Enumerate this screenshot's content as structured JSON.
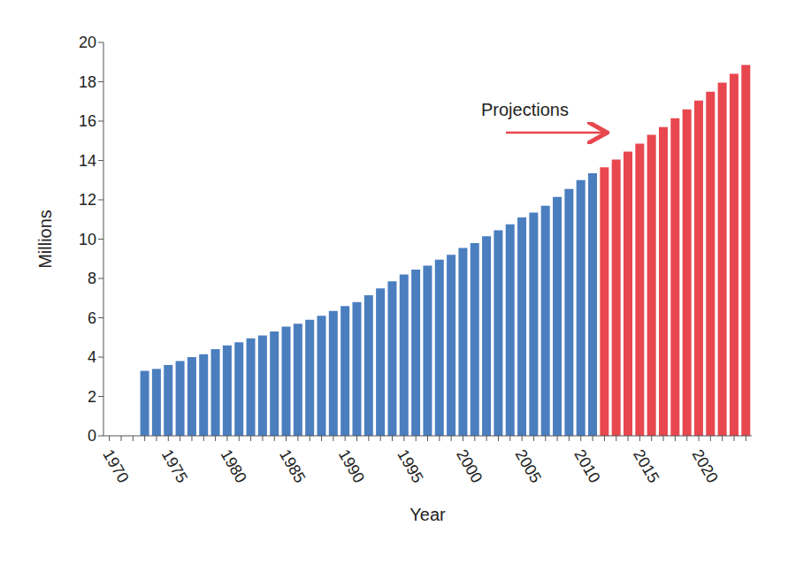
{
  "chart_data": {
    "type": "bar",
    "x_label": "Year",
    "y_label": "Millions",
    "annotations": [
      {
        "text": "Projections"
      }
    ],
    "categories": [
      "1970",
      null,
      null,
      null,
      null,
      "1975",
      null,
      null,
      null,
      null,
      "1980",
      null,
      null,
      null,
      null,
      "1985",
      null,
      null,
      null,
      null,
      "1990",
      null,
      null,
      null,
      null,
      "1995",
      null,
      null,
      null,
      null,
      "2000",
      null,
      null,
      null,
      null,
      "2005",
      null,
      null,
      null,
      null,
      "2010",
      null,
      null,
      null,
      null,
      "2015",
      null,
      null,
      null,
      null,
      "2020",
      null,
      null,
      null,
      null
    ],
    "values": [
      null,
      null,
      null,
      3.3,
      3.4,
      3.6,
      3.8,
      4.0,
      4.15,
      4.4,
      4.6,
      4.75,
      4.95,
      5.1,
      5.3,
      5.55,
      5.7,
      5.9,
      6.1,
      6.35,
      6.6,
      6.8,
      7.15,
      7.5,
      7.85,
      8.2,
      8.45,
      8.65,
      8.95,
      9.2,
      9.55,
      9.8,
      10.15,
      10.45,
      10.75,
      11.1,
      11.35,
      11.7,
      12.15,
      12.55,
      13.0,
      13.35,
      13.65,
      14.05,
      14.45,
      14.85,
      15.3,
      15.7,
      16.15,
      16.6,
      17.05,
      17.5,
      17.95,
      18.4,
      18.85
    ],
    "colors": [
      "#4a7ebf",
      "#4a7ebf",
      "#4a7ebf",
      "#4a7ebf",
      "#4a7ebf",
      "#4a7ebf",
      "#4a7ebf",
      "#4a7ebf",
      "#4a7ebf",
      "#4a7ebf",
      "#4a7ebf",
      "#4a7ebf",
      "#4a7ebf",
      "#4a7ebf",
      "#4a7ebf",
      "#4a7ebf",
      "#4a7ebf",
      "#4a7ebf",
      "#4a7ebf",
      "#4a7ebf",
      "#4a7ebf",
      "#4a7ebf",
      "#4a7ebf",
      "#4a7ebf",
      "#4a7ebf",
      "#4a7ebf",
      "#4a7ebf",
      "#4a7ebf",
      "#4a7ebf",
      "#4a7ebf",
      "#4a7ebf",
      "#4a7ebf",
      "#4a7ebf",
      "#4a7ebf",
      "#4a7ebf",
      "#4a7ebf",
      "#4a7ebf",
      "#4a7ebf",
      "#4a7ebf",
      "#4a7ebf",
      "#4a7ebf",
      "#4a7ebf",
      "#e8474f",
      "#e8474f",
      "#e8474f",
      "#e8474f",
      "#e8474f",
      "#e8474f",
      "#e8474f",
      "#e8474f",
      "#e8474f",
      "#e8474f",
      "#e8474f",
      "#e8474f",
      "#e8474f"
    ],
    "ylim": [
      0,
      20
    ],
    "yticks": [
      0,
      2,
      4,
      6,
      8,
      10,
      12,
      14,
      16,
      18,
      20
    ],
    "grid": false
  }
}
